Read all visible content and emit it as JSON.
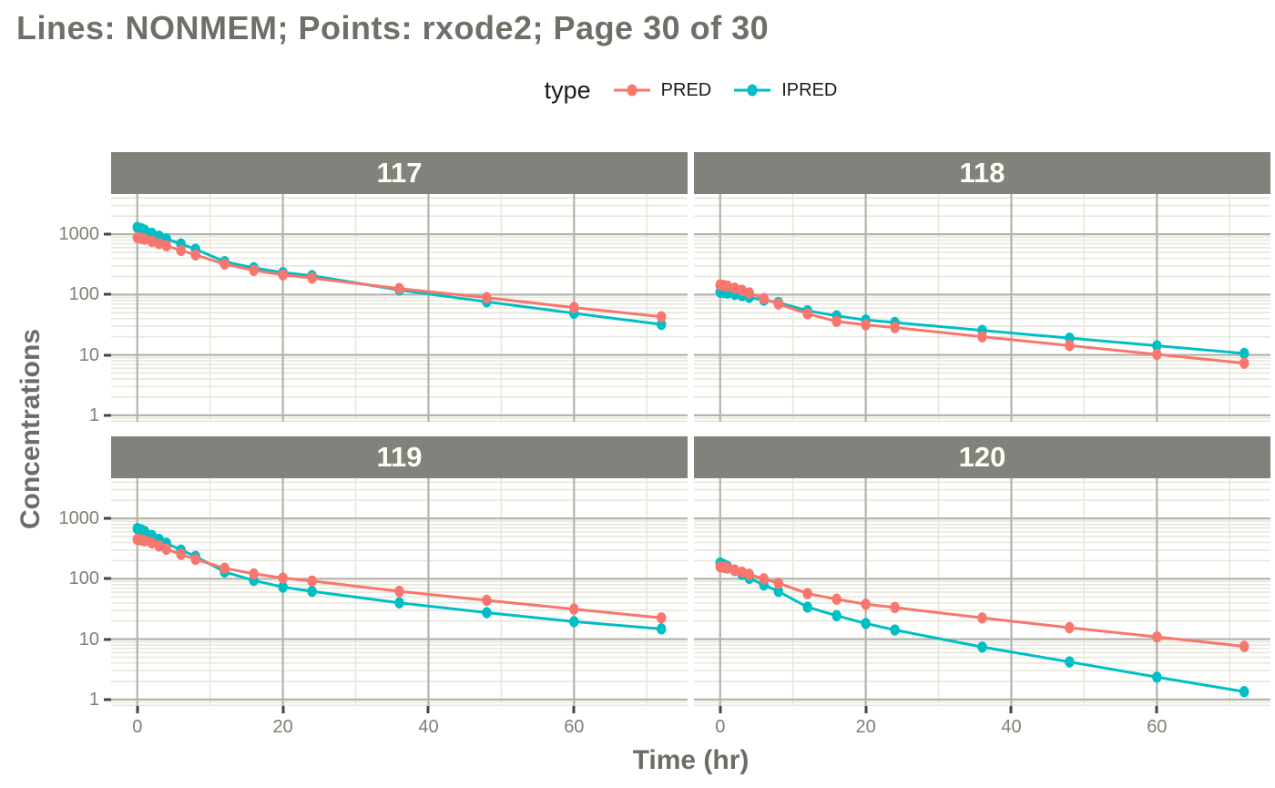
{
  "title": "Lines: NONMEM; Points: rxode2; Page 30 of 30",
  "legend": {
    "title": "type",
    "items": [
      {
        "label": "PRED",
        "color": "#F8766D"
      },
      {
        "label": "IPRED",
        "color": "#00BFC4"
      }
    ],
    "position": "top"
  },
  "axes": {
    "x_title": "Time (hr)",
    "y_title": "Concentrations"
  },
  "chart_data": {
    "type": "line",
    "y_scale": "log10",
    "xlabel": "Time (hr)",
    "ylabel": "Concentrations",
    "xlim": [
      -3.6,
      75.6
    ],
    "ylim": [
      0.78,
      4640
    ],
    "grid": true,
    "legend_position": "top",
    "x_ticks": [
      {
        "label": "0",
        "value": 0
      },
      {
        "label": "20",
        "value": 20
      },
      {
        "label": "40",
        "value": 40
      },
      {
        "label": "60",
        "value": 60
      }
    ],
    "y_ticks": [
      {
        "label": "1000",
        "value": 1000
      },
      {
        "label": "100",
        "value": 100
      },
      {
        "label": "10",
        "value": 10
      },
      {
        "label": "1",
        "value": 1
      }
    ],
    "x_minor_gridlines": [
      10,
      30,
      50,
      70
    ],
    "x": [
      0,
      0.5,
      1,
      2,
      3,
      4,
      6,
      8,
      12,
      16,
      20,
      24,
      36,
      48,
      60,
      72
    ],
    "facets": [
      {
        "label": "117",
        "series": [
          {
            "name": "PRED",
            "color": "#F8766D",
            "values": [
              880,
              858,
              828,
              762,
              700,
              645,
              540,
              455,
              320,
              252,
              212,
              188,
              126,
              89,
              61,
              43
            ]
          },
          {
            "name": "IPRED",
            "color": "#00BFC4",
            "values": [
              1300,
              1243,
              1170,
              1040,
              930,
              838,
              690,
              565,
              352,
              278,
              232,
              206,
              119,
              76,
              49,
              32
            ]
          }
        ]
      },
      {
        "label": "118",
        "series": [
          {
            "name": "PRED",
            "color": "#F8766D",
            "values": [
              145,
              142,
              138,
              128,
              118,
              107,
              86,
              70,
              48,
              36,
              31.5,
              28.5,
              20,
              14.3,
              10.2,
              7.3
            ]
          },
          {
            "name": "IPRED",
            "color": "#00BFC4",
            "values": [
              110,
              108,
              106,
              101,
              96,
              90,
              81,
              74,
              54,
              44.5,
              38,
              34.5,
              25.5,
              19,
              14.2,
              10.6
            ]
          }
        ]
      },
      {
        "label": "119",
        "series": [
          {
            "name": "PRED",
            "color": "#F8766D",
            "values": [
              450,
              441,
              428,
              395,
              350,
              310,
              255,
              210,
              150,
              121,
              103,
              92,
              62,
              44,
              31.5,
              22.5
            ]
          },
          {
            "name": "IPRED",
            "color": "#00BFC4",
            "values": [
              680,
              652,
              612,
              525,
              450,
              388,
              300,
              236,
              130,
              94,
              73,
              62,
              40,
              27.5,
              19.5,
              14.8
            ]
          }
        ]
      },
      {
        "label": "120",
        "series": [
          {
            "name": "PRED",
            "color": "#F8766D",
            "values": [
              158,
              155,
              151,
              140,
              129,
              119,
              100,
              85,
              57,
              46,
              38,
              33.5,
              22.5,
              15.5,
              10.9,
              7.6
            ]
          },
          {
            "name": "IPRED",
            "color": "#00BFC4",
            "values": [
              183,
              172,
              160,
              138,
              118,
              102,
              79,
              62,
              34,
              24.5,
              18.2,
              14.2,
              7.4,
              4.2,
              2.35,
              1.35
            ]
          }
        ]
      }
    ],
    "style": {
      "panel_bg": "#FFFFFF",
      "grid_major_color": "#B4B4AA",
      "grid_minor_color": "#E7E7DB",
      "strip_bg": "#82827C",
      "strip_text_color": "#FFFFF6",
      "title_color": "#6F6F67",
      "axis_title_color": "#6D6D66",
      "tick_label_color": "#7F7F76",
      "tick_mark_color": "#454540"
    }
  }
}
